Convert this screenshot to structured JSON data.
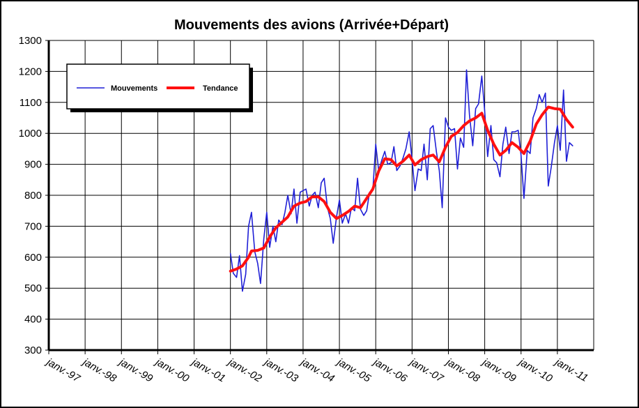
{
  "chart_data": {
    "type": "line",
    "title": "Mouvements des avions (Arrivée+Départ)",
    "xlabel": "",
    "ylabel": "",
    "ylim": [
      300,
      1300
    ],
    "yticks": [
      300,
      400,
      500,
      600,
      700,
      800,
      900,
      1000,
      1100,
      1200,
      1300
    ],
    "xlim": [
      1997.0,
      2012.0
    ],
    "xticks": [
      {
        "label": "janv.-97",
        "x": 1997
      },
      {
        "label": "janv.-98",
        "x": 1998
      },
      {
        "label": "janv.-99",
        "x": 1999
      },
      {
        "label": "janv.-00",
        "x": 2000
      },
      {
        "label": "janv.-01",
        "x": 2001
      },
      {
        "label": "janv.-02",
        "x": 2002
      },
      {
        "label": "janv.-03",
        "x": 2003
      },
      {
        "label": "janv.-04",
        "x": 2004
      },
      {
        "label": "janv.-05",
        "x": 2005
      },
      {
        "label": "janv.-06",
        "x": 2006
      },
      {
        "label": "janv.-07",
        "x": 2007
      },
      {
        "label": "janv.-08",
        "x": 2008
      },
      {
        "label": "janv.-09",
        "x": 2009
      },
      {
        "label": "janv.-10",
        "x": 2010
      },
      {
        "label": "janv.-11",
        "x": 2011
      }
    ],
    "grid": true,
    "legend_position": "top-left",
    "series": [
      {
        "name": "Mouvements",
        "color": "#1f1fd6",
        "points": [
          [
            2002.0,
            612
          ],
          [
            2002.08,
            548
          ],
          [
            2002.17,
            535
          ],
          [
            2002.25,
            605
          ],
          [
            2002.33,
            490
          ],
          [
            2002.42,
            545
          ],
          [
            2002.5,
            700
          ],
          [
            2002.58,
            745
          ],
          [
            2002.67,
            618
          ],
          [
            2002.75,
            580
          ],
          [
            2002.83,
            515
          ],
          [
            2002.92,
            660
          ],
          [
            2003.0,
            745
          ],
          [
            2003.08,
            632
          ],
          [
            2003.17,
            700
          ],
          [
            2003.25,
            650
          ],
          [
            2003.33,
            720
          ],
          [
            2003.42,
            705
          ],
          [
            2003.5,
            745
          ],
          [
            2003.58,
            800
          ],
          [
            2003.67,
            740
          ],
          [
            2003.75,
            820
          ],
          [
            2003.83,
            710
          ],
          [
            2003.92,
            810
          ],
          [
            2004.0,
            815
          ],
          [
            2004.08,
            820
          ],
          [
            2004.17,
            765
          ],
          [
            2004.25,
            800
          ],
          [
            2004.33,
            810
          ],
          [
            2004.42,
            760
          ],
          [
            2004.5,
            840
          ],
          [
            2004.58,
            855
          ],
          [
            2004.67,
            760
          ],
          [
            2004.75,
            725
          ],
          [
            2004.83,
            645
          ],
          [
            2004.92,
            730
          ],
          [
            2005.0,
            785
          ],
          [
            2005.08,
            710
          ],
          [
            2005.17,
            740
          ],
          [
            2005.25,
            710
          ],
          [
            2005.33,
            760
          ],
          [
            2005.42,
            750
          ],
          [
            2005.5,
            855
          ],
          [
            2005.58,
            755
          ],
          [
            2005.67,
            735
          ],
          [
            2005.75,
            750
          ],
          [
            2005.83,
            810
          ],
          [
            2005.92,
            815
          ],
          [
            2006.0,
            965
          ],
          [
            2006.08,
            880
          ],
          [
            2006.17,
            915
          ],
          [
            2006.25,
            942
          ],
          [
            2006.33,
            900
          ],
          [
            2006.42,
            905
          ],
          [
            2006.5,
            957
          ],
          [
            2006.58,
            880
          ],
          [
            2006.67,
            895
          ],
          [
            2006.75,
            920
          ],
          [
            2006.83,
            950
          ],
          [
            2006.92,
            1005
          ],
          [
            2007.0,
            915
          ],
          [
            2007.08,
            815
          ],
          [
            2007.17,
            885
          ],
          [
            2007.25,
            880
          ],
          [
            2007.33,
            965
          ],
          [
            2007.42,
            850
          ],
          [
            2007.5,
            1015
          ],
          [
            2007.58,
            1025
          ],
          [
            2007.67,
            940
          ],
          [
            2007.75,
            880
          ],
          [
            2007.83,
            760
          ],
          [
            2007.92,
            1050
          ],
          [
            2008.0,
            1020
          ],
          [
            2008.08,
            1010
          ],
          [
            2008.17,
            1015
          ],
          [
            2008.25,
            885
          ],
          [
            2008.33,
            985
          ],
          [
            2008.42,
            955
          ],
          [
            2008.5,
            1205
          ],
          [
            2008.58,
            1060
          ],
          [
            2008.67,
            960
          ],
          [
            2008.75,
            1080
          ],
          [
            2008.83,
            1095
          ],
          [
            2008.92,
            1185
          ],
          [
            2009.0,
            1070
          ],
          [
            2009.08,
            925
          ],
          [
            2009.17,
            1025
          ],
          [
            2009.25,
            915
          ],
          [
            2009.33,
            905
          ],
          [
            2009.42,
            860
          ],
          [
            2009.5,
            965
          ],
          [
            2009.58,
            1020
          ],
          [
            2009.67,
            935
          ],
          [
            2009.75,
            1005
          ],
          [
            2009.83,
            1005
          ],
          [
            2009.92,
            1010
          ],
          [
            2010.0,
            930
          ],
          [
            2010.08,
            790
          ],
          [
            2010.17,
            945
          ],
          [
            2010.25,
            935
          ],
          [
            2010.33,
            1050
          ],
          [
            2010.42,
            1080
          ],
          [
            2010.5,
            1125
          ],
          [
            2010.58,
            1100
          ],
          [
            2010.67,
            1130
          ],
          [
            2010.75,
            830
          ],
          [
            2010.83,
            890
          ],
          [
            2010.92,
            970
          ],
          [
            2011.0,
            1025
          ],
          [
            2011.08,
            945
          ],
          [
            2011.17,
            1140
          ],
          [
            2011.25,
            910
          ],
          [
            2011.33,
            970
          ],
          [
            2011.42,
            960
          ]
        ]
      },
      {
        "name": "Tendance",
        "color": "#ff1010",
        "points": [
          [
            2002.0,
            555
          ],
          [
            2002.17,
            562
          ],
          [
            2002.33,
            572
          ],
          [
            2002.5,
            600
          ],
          [
            2002.58,
            620
          ],
          [
            2002.75,
            622
          ],
          [
            2002.92,
            630
          ],
          [
            2003.08,
            665
          ],
          [
            2003.25,
            695
          ],
          [
            2003.42,
            713
          ],
          [
            2003.58,
            730
          ],
          [
            2003.75,
            765
          ],
          [
            2003.92,
            775
          ],
          [
            2004.08,
            780
          ],
          [
            2004.25,
            795
          ],
          [
            2004.42,
            795
          ],
          [
            2004.58,
            780
          ],
          [
            2004.75,
            745
          ],
          [
            2004.92,
            725
          ],
          [
            2005.08,
            735
          ],
          [
            2005.25,
            748
          ],
          [
            2005.42,
            765
          ],
          [
            2005.58,
            760
          ],
          [
            2005.75,
            790
          ],
          [
            2005.92,
            820
          ],
          [
            2006.08,
            878
          ],
          [
            2006.25,
            918
          ],
          [
            2006.42,
            915
          ],
          [
            2006.58,
            895
          ],
          [
            2006.75,
            910
          ],
          [
            2006.92,
            930
          ],
          [
            2007.08,
            898
          ],
          [
            2007.25,
            915
          ],
          [
            2007.42,
            925
          ],
          [
            2007.58,
            930
          ],
          [
            2007.75,
            908
          ],
          [
            2007.92,
            955
          ],
          [
            2008.08,
            990
          ],
          [
            2008.25,
            1003
          ],
          [
            2008.42,
            1025
          ],
          [
            2008.58,
            1040
          ],
          [
            2008.75,
            1050
          ],
          [
            2008.92,
            1065
          ],
          [
            2009.08,
            1010
          ],
          [
            2009.25,
            965
          ],
          [
            2009.42,
            930
          ],
          [
            2009.58,
            945
          ],
          [
            2009.75,
            970
          ],
          [
            2009.92,
            955
          ],
          [
            2010.08,
            935
          ],
          [
            2010.25,
            975
          ],
          [
            2010.42,
            1030
          ],
          [
            2010.58,
            1060
          ],
          [
            2010.75,
            1085
          ],
          [
            2010.92,
            1080
          ],
          [
            2011.08,
            1078
          ],
          [
            2011.25,
            1045
          ],
          [
            2011.42,
            1020
          ]
        ]
      }
    ]
  }
}
